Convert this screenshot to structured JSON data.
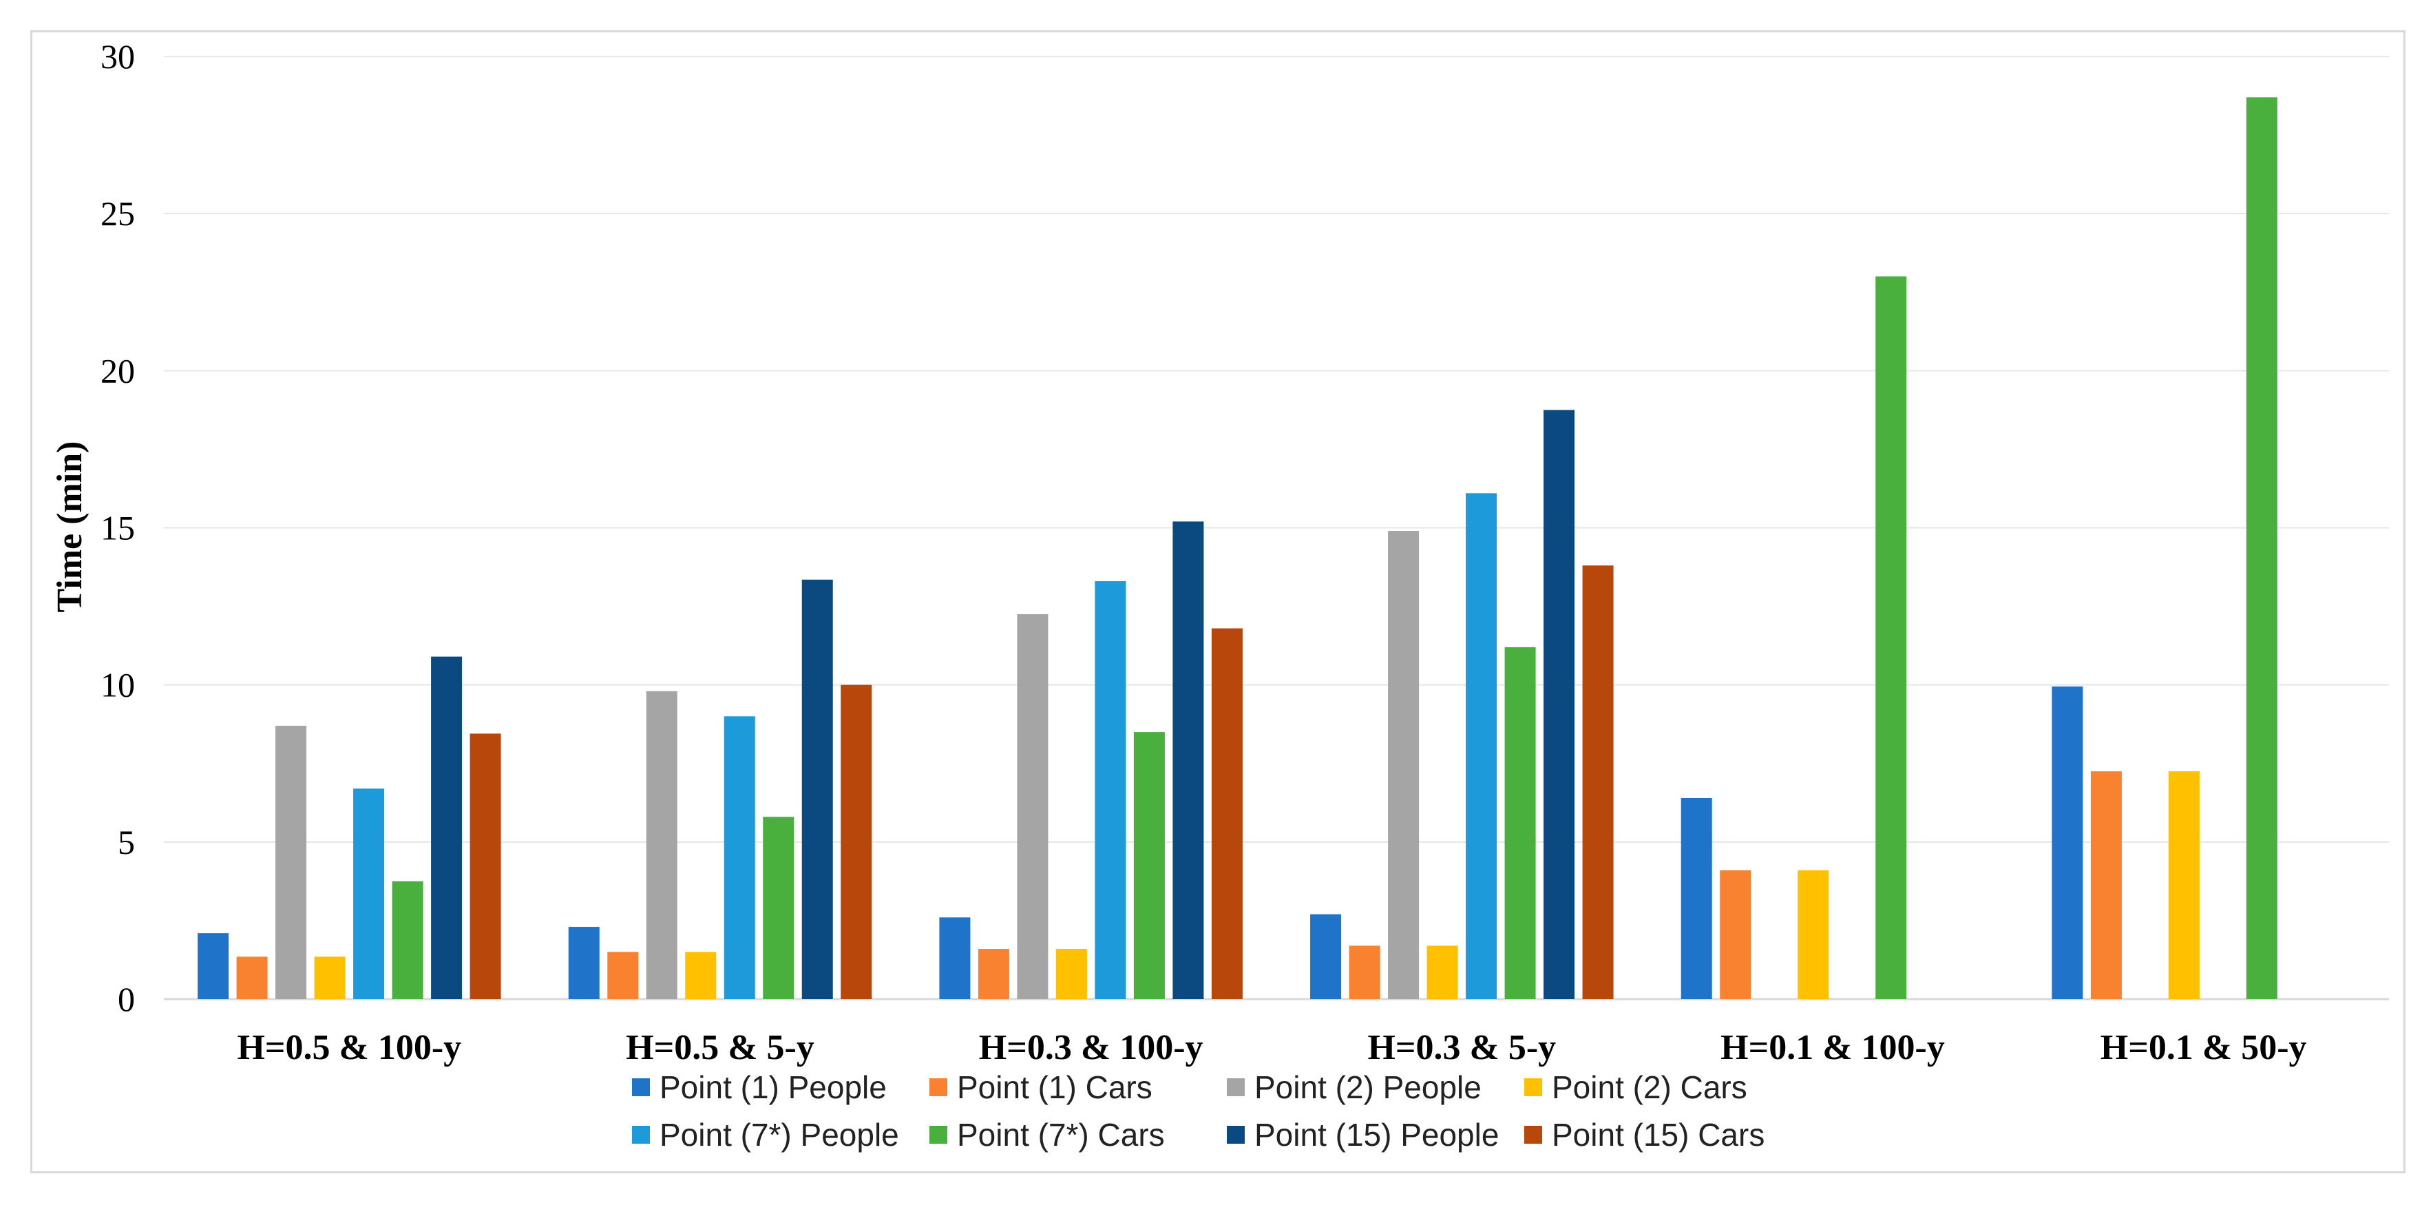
{
  "chart_data": {
    "type": "bar",
    "title": "",
    "xlabel": "",
    "ylabel": "Time (min)",
    "ylim": [
      0,
      30
    ],
    "yticks": [
      0,
      5,
      10,
      15,
      20,
      25,
      30
    ],
    "grid": true,
    "legend_position": "bottom",
    "categories": [
      "H=0.5 & 100-y",
      "H=0.5 & 5-y",
      "H=0.3 & 100-y",
      "H=0.3 & 5-y",
      "H=0.1 & 100-y",
      "H=0.1 & 50-y"
    ],
    "series": [
      {
        "name": "Point (1) People",
        "color": "#1f73c8",
        "values": [
          2.1,
          2.3,
          2.6,
          2.7,
          6.4,
          9.95
        ]
      },
      {
        "name": "Point (1) Cars",
        "color": "#f98230",
        "values": [
          1.35,
          1.5,
          1.6,
          1.7,
          4.1,
          7.25
        ]
      },
      {
        "name": "Point (2) People",
        "color": "#a5a5a5",
        "values": [
          8.7,
          9.8,
          12.25,
          14.9,
          null,
          null
        ]
      },
      {
        "name": "Point (2) Cars",
        "color": "#ffc000",
        "values": [
          1.35,
          1.5,
          1.6,
          1.7,
          4.1,
          7.25
        ]
      },
      {
        "name": "Point (7*) People",
        "color": "#1c9ad9",
        "values": [
          6.7,
          9.0,
          13.3,
          16.1,
          null,
          null
        ]
      },
      {
        "name": "Point (7*) Cars",
        "color": "#49b03e",
        "values": [
          3.75,
          5.8,
          8.5,
          11.2,
          23.0,
          28.7
        ]
      },
      {
        "name": "Point (15) People",
        "color": "#0b4a80",
        "values": [
          10.9,
          13.35,
          15.2,
          18.75,
          null,
          null
        ]
      },
      {
        "name": "Point (15) Cars",
        "color": "#b8470b",
        "values": [
          8.45,
          10.0,
          11.8,
          13.8,
          null,
          null
        ]
      }
    ]
  }
}
